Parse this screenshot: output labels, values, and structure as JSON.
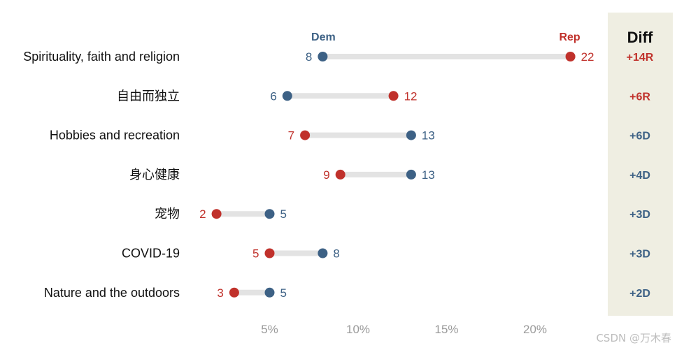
{
  "chart_data": {
    "type": "dumbbell",
    "title": "",
    "diff_header": "Diff",
    "series": [
      {
        "name": "Dem",
        "color": "#3d6185"
      },
      {
        "name": "Rep",
        "color": "#c0312b"
      }
    ],
    "x_ticks": [
      {
        "value": 5,
        "label": "5%"
      },
      {
        "value": 10,
        "label": "10%"
      },
      {
        "value": 15,
        "label": "15%"
      },
      {
        "value": 20,
        "label": "20%"
      }
    ],
    "rows": [
      {
        "category": "Spirituality, faith and religion",
        "dem": 8,
        "rep": 22,
        "diff": "+14R",
        "diff_party": "rep"
      },
      {
        "category": "自由而独立",
        "dem": 6,
        "rep": 12,
        "diff": "+6R",
        "diff_party": "rep"
      },
      {
        "category": "Hobbies and recreation",
        "dem": 13,
        "rep": 7,
        "diff": "+6D",
        "diff_party": "dem"
      },
      {
        "category": "身心健康",
        "dem": 13,
        "rep": 9,
        "diff": "+4D",
        "diff_party": "dem"
      },
      {
        "category": "宠物",
        "dem": 5,
        "rep": 2,
        "diff": "+3D",
        "diff_party": "dem"
      },
      {
        "category": "COVID-19",
        "dem": 8,
        "rep": 5,
        "diff": "+3D",
        "diff_party": "dem"
      },
      {
        "category": "Nature and the outdoors",
        "dem": 5,
        "rep": 3,
        "diff": "+2D",
        "diff_party": "dem"
      }
    ]
  },
  "watermark": "CSDN @万木春"
}
